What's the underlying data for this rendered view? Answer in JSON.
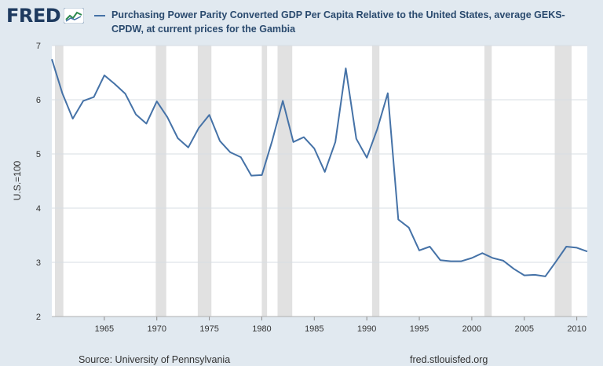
{
  "header": {
    "logo_text": "FRED",
    "legend_text": "Purchasing Power Parity Converted GDP Per Capita Relative to the United States, average GEKS-CPDW, at current prices for the Gambia"
  },
  "footer": {
    "source": "Source: University of Pennsylvania",
    "url": "fred.stlouisfed.org"
  },
  "colors": {
    "line": "#4572a7",
    "recession": "#e1e1e1",
    "plot_bg": "#ffffff",
    "page_bg": "#e1e9f0",
    "grid": "#d7dde3"
  },
  "chart_data": {
    "type": "line",
    "title": "Purchasing Power Parity Converted GDP Per Capita Relative to the United States, average GEKS-CPDW, at current prices for the Gambia",
    "xlabel": "",
    "ylabel": "U.S.=100",
    "xlim": [
      1960,
      2011
    ],
    "ylim": [
      2,
      7
    ],
    "yticks": [
      2,
      3,
      4,
      5,
      6,
      7
    ],
    "xticks": [
      1965,
      1970,
      1975,
      1980,
      1985,
      1990,
      1995,
      2000,
      2005,
      2010
    ],
    "grid": true,
    "legend": "top",
    "recessions": [
      [
        1960.3,
        1961.1
      ],
      [
        1969.9,
        1970.9
      ],
      [
        1973.9,
        1975.2
      ],
      [
        1980.0,
        1980.5
      ],
      [
        1981.5,
        1982.9
      ],
      [
        1990.5,
        1991.2
      ],
      [
        2001.2,
        2001.9
      ],
      [
        2007.9,
        2009.5
      ]
    ],
    "series": [
      {
        "name": "Purchasing Power Parity Converted GDP Per Capita Relative to the United States, average GEKS-CPDW, at current prices for the Gambia",
        "x": [
          1960,
          1961,
          1962,
          1963,
          1964,
          1965,
          1966,
          1967,
          1968,
          1969,
          1970,
          1971,
          1972,
          1973,
          1974,
          1975,
          1976,
          1977,
          1978,
          1979,
          1980,
          1981,
          1982,
          1983,
          1984,
          1985,
          1986,
          1987,
          1988,
          1989,
          1990,
          1991,
          1992,
          1993,
          1994,
          1995,
          1996,
          1997,
          1998,
          1999,
          2000,
          2001,
          2002,
          2003,
          2004,
          2005,
          2006,
          2007,
          2008,
          2009,
          2010,
          2011
        ],
        "values": [
          6.75,
          6.12,
          5.65,
          5.98,
          6.05,
          6.45,
          6.29,
          6.11,
          5.73,
          5.56,
          5.97,
          5.68,
          5.29,
          5.12,
          5.48,
          5.72,
          5.24,
          5.03,
          4.94,
          4.6,
          4.61,
          5.25,
          5.98,
          5.22,
          5.31,
          5.1,
          4.67,
          5.22,
          6.58,
          5.28,
          4.93,
          5.46,
          6.12,
          3.79,
          3.64,
          3.22,
          3.29,
          3.04,
          3.02,
          3.02,
          3.08,
          3.17,
          3.08,
          3.03,
          2.88,
          2.76,
          2.77,
          2.74,
          3.01,
          3.29,
          3.27,
          3.2
        ]
      }
    ]
  }
}
